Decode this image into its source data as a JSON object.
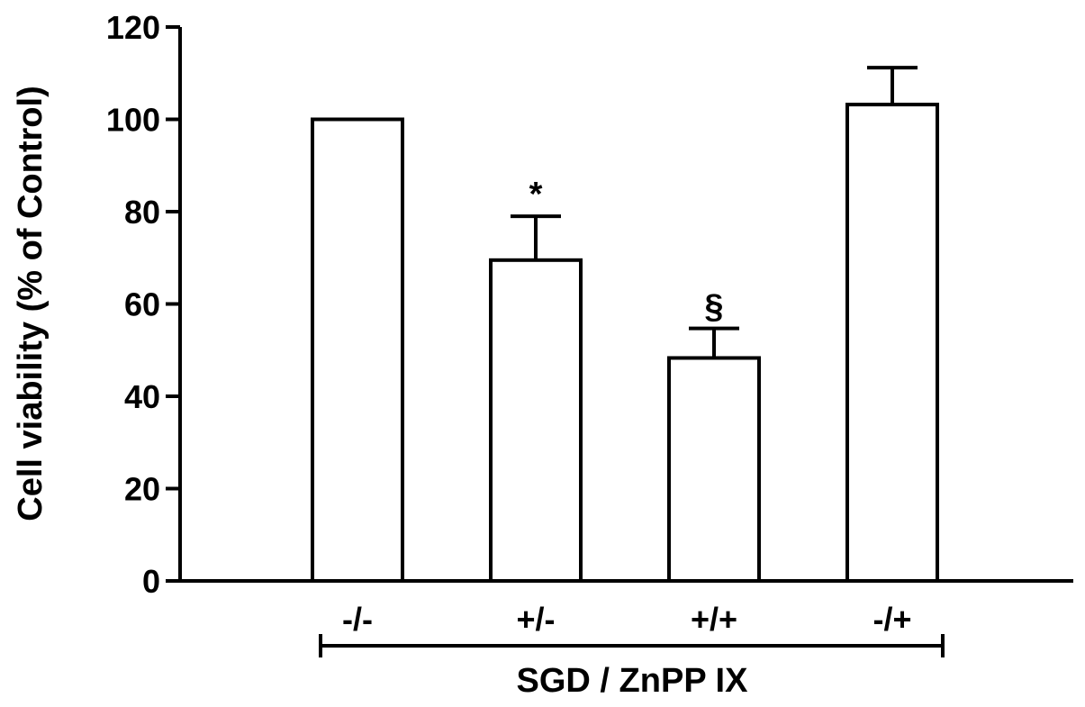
{
  "chart_data": {
    "type": "bar",
    "title": "",
    "categories": [
      "-/-",
      "+/-",
      "+/+",
      "-/+"
    ],
    "values": [
      100,
      69.5,
      48.3,
      103.2
    ],
    "errors": [
      0,
      9.5,
      6.4,
      8.0
    ],
    "annotations": [
      "",
      "*",
      "§",
      ""
    ],
    "ylabel": "Cell viability (% of Control)",
    "xlabel": "SGD / ZnPP IX",
    "ylim": [
      0,
      120
    ],
    "yticks": [
      0,
      20,
      40,
      60,
      80,
      100,
      120
    ],
    "grid": false,
    "legend": "none",
    "colors": {
      "bar_fill": "#ffffff",
      "stroke": "#000000"
    }
  }
}
